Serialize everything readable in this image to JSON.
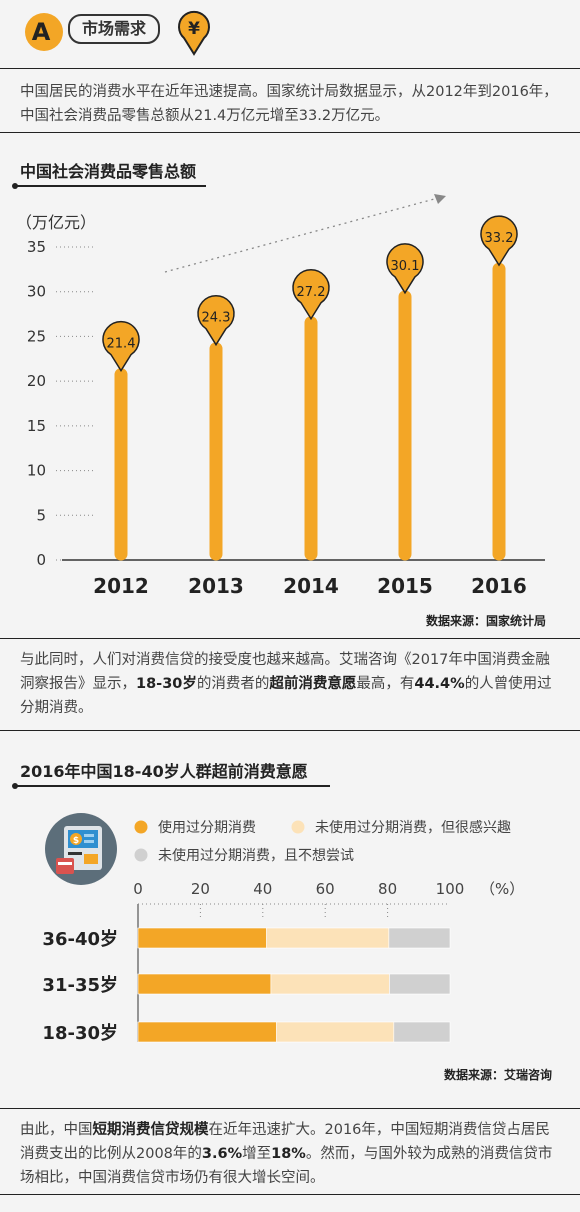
{
  "header": {
    "badge_letter": "A",
    "tag": "市场需求",
    "yen_symbol": "¥",
    "accent_color": "#f3a626",
    "icon_name": "yen-pin-icon"
  },
  "intro": "中国居民的消费水平在近年迅速提高。国家统计局数据显示，从2012年到2016年，中国社会消费品零售总额从21.4万亿元增至33.2万亿元。",
  "chart1": {
    "section_title": "中国社会消费品零售总额",
    "source": "数据来源：国家统计局"
  },
  "para2": {
    "before": "与此同时，人们对消费信贷的接受度也越来越高。艾瑞咨询《2017年中国消费金融洞察报告》显示，",
    "bold1": "18-30岁",
    "mid1": "的消费者的",
    "bold2": "超前消费意愿",
    "mid2": "最高，有",
    "bold3": "44.4%",
    "after": "的人曾使用过分期消费。"
  },
  "chart2": {
    "section_title": "2016年中国18-40岁人群超前消费意愿",
    "source": "数据来源：艾瑞咨询",
    "icon_name": "atm-machine-icon"
  },
  "para3": {
    "before": "由此，中国",
    "bold1": "短期消费信贷规模",
    "mid1": "在近年迅速扩大。2016年，中国短期消费信贷占居民消费支出的比例从2008年的",
    "bold2": "3.6%",
    "mid2": "增至",
    "bold3": "18%",
    "after": "。然而，与国外较为成熟的消费信贷市场相比，中国消费信贷市场仍有很大增长空间。"
  },
  "chart_data": [
    {
      "type": "bar",
      "title": "中国社会消费品零售总额",
      "ylabel": "（万亿元）",
      "categories": [
        "2012",
        "2013",
        "2014",
        "2015",
        "2016"
      ],
      "values": [
        21.4,
        24.3,
        27.2,
        30.1,
        33.2
      ],
      "value_labels": [
        "21.4",
        "24.3",
        "27.2",
        "30.1",
        "33.2"
      ],
      "yticks": [
        0,
        5,
        10,
        15,
        20,
        25,
        30,
        35
      ],
      "ytick_labels": [
        "0",
        "5",
        "10",
        "15",
        "20",
        "25",
        "30",
        "35"
      ],
      "ylim": [
        0,
        35
      ],
      "color": "#f3a626",
      "grid": false
    },
    {
      "type": "bar",
      "orientation": "horizontal",
      "stacked": true,
      "title": "2016年中国18-40岁人群超前消费意愿",
      "xlabel": "（%）",
      "categories": [
        "36-40岁",
        "31-35岁",
        "18-30岁"
      ],
      "series": [
        {
          "name": "使用过分期消费",
          "values": [
            41.2,
            42.6,
            44.4
          ],
          "color": "#f3a626"
        },
        {
          "name": "未使用过分期消费，但很感兴趣",
          "values": [
            39.2,
            38.0,
            37.6
          ],
          "color": "#fce2b8"
        },
        {
          "name": "未使用过分期消费，且不想尝试",
          "values": [
            19.6,
            19.4,
            18.0
          ],
          "color": "#d0d0d0"
        }
      ],
      "xticks": [
        0,
        20,
        40,
        60,
        80,
        100
      ],
      "xtick_labels": [
        "0",
        "20",
        "40",
        "60",
        "80",
        "100"
      ],
      "xlim": [
        0,
        100
      ],
      "legend_position": "top",
      "grid": true
    }
  ]
}
